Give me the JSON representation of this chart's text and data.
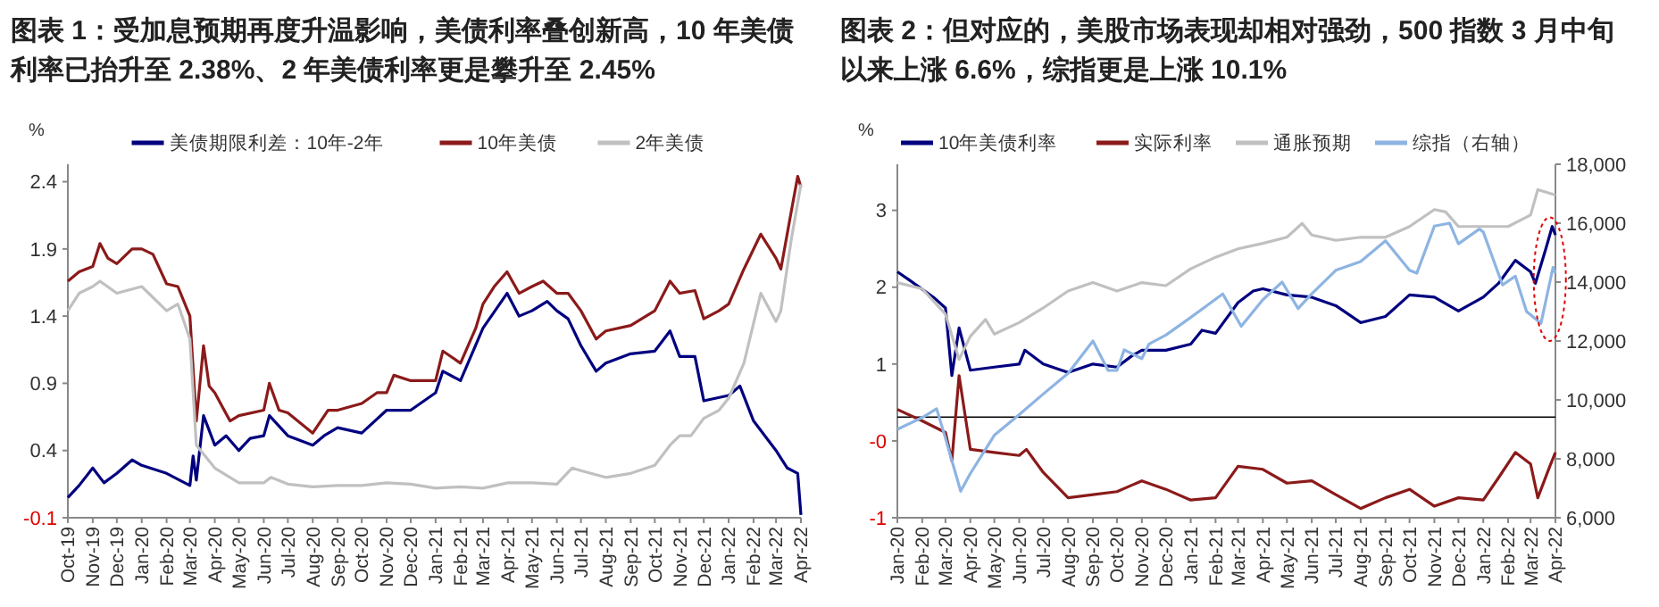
{
  "chart_data": [
    {
      "type": "line",
      "title": "图表 1：受加息预期再度升温影响，美债利率叠创新高，10 年美债利率已抬升至 2.38%、2 年美债利率更是攀升至 2.45%",
      "ylabel": "%",
      "legend": "top",
      "grid": false,
      "line_style": "solid",
      "marker": "none",
      "xlim": [
        "2019-10-01",
        "2022-04-01"
      ],
      "ylim": [
        -0.1,
        2.53
      ],
      "yticks": [
        -0.1,
        0.4,
        0.9,
        1.4,
        1.9,
        2.4
      ],
      "xticks": [
        {
          "value": "2019-10-01",
          "label": "Oct-19"
        },
        {
          "value": "2019-11-01",
          "label": "Nov-19"
        },
        {
          "value": "2019-12-01",
          "label": "Dec-19"
        },
        {
          "value": "2020-01-01",
          "label": "Jan-20"
        },
        {
          "value": "2020-02-01",
          "label": "Feb-20"
        },
        {
          "value": "2020-03-01",
          "label": "Mar-20"
        },
        {
          "value": "2020-04-01",
          "label": "Apr-20"
        },
        {
          "value": "2020-05-01",
          "label": "May-20"
        },
        {
          "value": "2020-06-01",
          "label": "Jun-20"
        },
        {
          "value": "2020-07-01",
          "label": "Jul-20"
        },
        {
          "value": "2020-08-01",
          "label": "Aug-20"
        },
        {
          "value": "2020-09-01",
          "label": "Sep-20"
        },
        {
          "value": "2020-10-01",
          "label": "Oct-20"
        },
        {
          "value": "2020-11-01",
          "label": "Nov-20"
        },
        {
          "value": "2020-12-01",
          "label": "Dec-20"
        },
        {
          "value": "2021-01-01",
          "label": "Jan-21"
        },
        {
          "value": "2021-02-01",
          "label": "Feb-21"
        },
        {
          "value": "2021-03-01",
          "label": "Mar-21"
        },
        {
          "value": "2021-04-01",
          "label": "Apr-21"
        },
        {
          "value": "2021-05-01",
          "label": "May-21"
        },
        {
          "value": "2021-06-01",
          "label": "Jun-21"
        },
        {
          "value": "2021-07-01",
          "label": "Jul-21"
        },
        {
          "value": "2021-08-01",
          "label": "Aug-21"
        },
        {
          "value": "2021-09-01",
          "label": "Sep-21"
        },
        {
          "value": "2021-10-01",
          "label": "Oct-21"
        },
        {
          "value": "2021-11-01",
          "label": "Nov-21"
        },
        {
          "value": "2021-12-01",
          "label": "Dec-21"
        },
        {
          "value": "2022-01-01",
          "label": "Jan-22"
        },
        {
          "value": "2022-02-01",
          "label": "Feb-22"
        },
        {
          "value": "2022-03-01",
          "label": "Mar-22"
        },
        {
          "value": "2022-04-01",
          "label": "Apr-22"
        }
      ],
      "series": [
        {
          "name": "美债期限利差：10年-2年",
          "color": "#00007f",
          "x": [
            "2019-10-01",
            "2019-10-15",
            "2019-11-01",
            "2019-11-15",
            "2019-12-01",
            "2019-12-20",
            "2020-01-01",
            "2020-02-01",
            "2020-03-01",
            "2020-03-05",
            "2020-03-09",
            "2020-03-18",
            "2020-04-01",
            "2020-04-15",
            "2020-05-01",
            "2020-05-15",
            "2020-06-01",
            "2020-06-08",
            "2020-07-01",
            "2020-08-01",
            "2020-08-15",
            "2020-09-01",
            "2020-10-01",
            "2020-11-01",
            "2020-12-01",
            "2021-01-01",
            "2021-01-10",
            "2021-02-01",
            "2021-03-01",
            "2021-03-31",
            "2021-04-15",
            "2021-05-01",
            "2021-05-20",
            "2021-06-01",
            "2021-06-15",
            "2021-07-01",
            "2021-07-20",
            "2021-08-01",
            "2021-09-01",
            "2021-10-01",
            "2021-10-20",
            "2021-11-01",
            "2021-11-20",
            "2021-12-01",
            "2022-01-01",
            "2022-01-15",
            "2022-02-01",
            "2022-03-01",
            "2022-03-15",
            "2022-03-28",
            "2022-04-01"
          ],
          "values": [
            0.05,
            0.14,
            0.27,
            0.16,
            0.23,
            0.33,
            0.29,
            0.23,
            0.14,
            0.36,
            0.18,
            0.66,
            0.44,
            0.51,
            0.4,
            0.49,
            0.51,
            0.66,
            0.51,
            0.44,
            0.51,
            0.57,
            0.53,
            0.7,
            0.7,
            0.83,
            0.99,
            0.92,
            1.31,
            1.57,
            1.4,
            1.44,
            1.51,
            1.44,
            1.38,
            1.18,
            0.99,
            1.05,
            1.12,
            1.14,
            1.29,
            1.1,
            1.1,
            0.77,
            0.81,
            0.88,
            0.62,
            0.4,
            0.27,
            0.23,
            -0.08
          ]
        },
        {
          "name": "10年美债",
          "color": "#8b1a1a",
          "x": [
            "2019-10-01",
            "2019-10-15",
            "2019-11-01",
            "2019-11-10",
            "2019-11-20",
            "2019-12-01",
            "2019-12-20",
            "2020-01-01",
            "2020-01-15",
            "2020-02-01",
            "2020-02-15",
            "2020-03-01",
            "2020-03-09",
            "2020-03-18",
            "2020-03-25",
            "2020-04-01",
            "2020-04-20",
            "2020-05-01",
            "2020-06-01",
            "2020-06-08",
            "2020-06-20",
            "2020-07-01",
            "2020-08-01",
            "2020-08-20",
            "2020-09-01",
            "2020-10-01",
            "2020-10-20",
            "2020-11-01",
            "2020-11-10",
            "2020-12-01",
            "2021-01-01",
            "2021-01-10",
            "2021-02-01",
            "2021-02-20",
            "2021-03-01",
            "2021-03-15",
            "2021-03-31",
            "2021-04-15",
            "2021-05-01",
            "2021-05-15",
            "2021-06-01",
            "2021-06-15",
            "2021-07-01",
            "2021-07-20",
            "2021-08-01",
            "2021-09-01",
            "2021-10-01",
            "2021-10-20",
            "2021-11-01",
            "2021-11-20",
            "2021-12-01",
            "2021-12-20",
            "2022-01-01",
            "2022-01-20",
            "2022-02-10",
            "2022-03-01",
            "2022-03-07",
            "2022-03-20",
            "2022-03-28",
            "2022-04-01"
          ],
          "values": [
            1.66,
            1.73,
            1.77,
            1.94,
            1.83,
            1.79,
            1.9,
            1.9,
            1.86,
            1.64,
            1.62,
            1.4,
            0.62,
            1.18,
            0.88,
            0.83,
            0.62,
            0.66,
            0.7,
            0.9,
            0.7,
            0.68,
            0.53,
            0.7,
            0.7,
            0.75,
            0.83,
            0.83,
            0.96,
            0.92,
            0.92,
            1.14,
            1.05,
            1.31,
            1.49,
            1.62,
            1.73,
            1.57,
            1.62,
            1.66,
            1.57,
            1.57,
            1.44,
            1.23,
            1.29,
            1.33,
            1.44,
            1.66,
            1.57,
            1.59,
            1.38,
            1.44,
            1.49,
            1.75,
            2.01,
            1.83,
            1.75,
            2.18,
            2.44,
            2.36
          ]
        },
        {
          "name": "2年美债",
          "color": "#c0c0c0",
          "x": [
            "2019-10-01",
            "2019-10-15",
            "2019-11-01",
            "2019-11-10",
            "2019-12-01",
            "2020-01-01",
            "2020-02-01",
            "2020-02-15",
            "2020-03-01",
            "2020-03-09",
            "2020-04-01",
            "2020-05-01",
            "2020-06-01",
            "2020-06-10",
            "2020-07-01",
            "2020-08-01",
            "2020-09-01",
            "2020-10-01",
            "2020-11-01",
            "2020-12-01",
            "2021-01-01",
            "2021-02-01",
            "2021-03-01",
            "2021-04-01",
            "2021-05-01",
            "2021-06-01",
            "2021-06-20",
            "2021-07-01",
            "2021-08-01",
            "2021-09-01",
            "2021-10-01",
            "2021-10-20",
            "2021-11-01",
            "2021-11-15",
            "2021-12-01",
            "2021-12-20",
            "2022-01-01",
            "2022-01-20",
            "2022-02-10",
            "2022-03-01",
            "2022-03-07",
            "2022-03-20",
            "2022-04-01"
          ],
          "values": [
            1.44,
            1.57,
            1.62,
            1.66,
            1.57,
            1.62,
            1.44,
            1.49,
            1.23,
            0.44,
            0.27,
            0.16,
            0.16,
            0.2,
            0.15,
            0.13,
            0.14,
            0.14,
            0.16,
            0.15,
            0.12,
            0.13,
            0.12,
            0.16,
            0.16,
            0.15,
            0.27,
            0.25,
            0.2,
            0.23,
            0.29,
            0.44,
            0.51,
            0.51,
            0.64,
            0.7,
            0.79,
            1.05,
            1.57,
            1.36,
            1.44,
            1.97,
            2.38
          ]
        }
      ]
    },
    {
      "type": "line",
      "title": "图表 2：但对应的，美股市场表现却相对强劲，500 指数 3 月中旬以来上涨 6.6%，综指更是上涨 10.1%",
      "ylabel": "%",
      "legend": "top",
      "grid": false,
      "line_style": "solid",
      "marker": "none",
      "xlim": [
        "2020-01-01",
        "2022-04-01"
      ],
      "ylim": [
        -1,
        3.6
      ],
      "yticks": [
        -1,
        {
          "value": 0,
          "label": "-0"
        },
        1,
        2,
        3
      ],
      "y2lim": [
        6000,
        18000
      ],
      "y2ticks": [
        {
          "value": 6000,
          "label": "6,000"
        },
        {
          "value": 8000,
          "label": "8,000"
        },
        {
          "value": 10000,
          "label": "10,000"
        },
        {
          "value": 12000,
          "label": "12,000"
        },
        {
          "value": 14000,
          "label": "14,000"
        },
        {
          "value": 16000,
          "label": "16,000"
        },
        {
          "value": 18000,
          "label": "18,000"
        }
      ],
      "ref_lines": [
        {
          "axis": "y",
          "value": 0.31,
          "color": "#000000"
        }
      ],
      "xticks": [
        {
          "value": "2020-01-01",
          "label": "Jan-20"
        },
        {
          "value": "2020-02-01",
          "label": "Feb-20"
        },
        {
          "value": "2020-03-01",
          "label": "Mar-20"
        },
        {
          "value": "2020-04-01",
          "label": "Apr-20"
        },
        {
          "value": "2020-05-01",
          "label": "May-20"
        },
        {
          "value": "2020-06-01",
          "label": "Jun-20"
        },
        {
          "value": "2020-07-01",
          "label": "Jul-20"
        },
        {
          "value": "2020-08-01",
          "label": "Aug-20"
        },
        {
          "value": "2020-09-01",
          "label": "Sep-20"
        },
        {
          "value": "2020-10-01",
          "label": "Oct-20"
        },
        {
          "value": "2020-11-01",
          "label": "Nov-20"
        },
        {
          "value": "2020-12-01",
          "label": "Dec-20"
        },
        {
          "value": "2021-01-01",
          "label": "Jan-21"
        },
        {
          "value": "2021-02-01",
          "label": "Feb-21"
        },
        {
          "value": "2021-03-01",
          "label": "Mar-21"
        },
        {
          "value": "2021-04-01",
          "label": "Apr-21"
        },
        {
          "value": "2021-05-01",
          "label": "May-21"
        },
        {
          "value": "2021-06-01",
          "label": "Jun-21"
        },
        {
          "value": "2021-07-01",
          "label": "Jul-21"
        },
        {
          "value": "2021-08-01",
          "label": "Aug-21"
        },
        {
          "value": "2021-09-01",
          "label": "Sep-21"
        },
        {
          "value": "2021-10-01",
          "label": "Oct-21"
        },
        {
          "value": "2021-11-01",
          "label": "Nov-21"
        },
        {
          "value": "2021-12-01",
          "label": "Dec-21"
        },
        {
          "value": "2022-01-01",
          "label": "Jan-22"
        },
        {
          "value": "2022-02-01",
          "label": "Feb-22"
        },
        {
          "value": "2022-03-01",
          "label": "Mar-22"
        },
        {
          "value": "2022-04-01",
          "label": "Apr-22"
        }
      ],
      "series": [
        {
          "name": "10年美债利率",
          "color": "#00007f",
          "x": [
            "2020-01-01",
            "2020-01-15",
            "2020-02-15",
            "2020-03-01",
            "2020-03-09",
            "2020-03-18",
            "2020-04-01",
            "2020-05-01",
            "2020-06-01",
            "2020-06-08",
            "2020-07-01",
            "2020-08-01",
            "2020-09-01",
            "2020-10-01",
            "2020-10-20",
            "2020-11-01",
            "2020-12-01",
            "2021-01-01",
            "2021-01-15",
            "2021-02-01",
            "2021-03-01",
            "2021-03-20",
            "2021-04-01",
            "2021-05-01",
            "2021-06-01",
            "2021-07-01",
            "2021-08-01",
            "2021-09-01",
            "2021-10-01",
            "2021-11-01",
            "2021-12-01",
            "2022-01-01",
            "2022-01-20",
            "2022-02-10",
            "2022-03-01",
            "2022-03-07",
            "2022-03-20",
            "2022-03-28",
            "2022-04-01"
          ],
          "values": [
            2.2,
            2.1,
            1.87,
            1.73,
            0.85,
            1.47,
            0.92,
            0.96,
            1.0,
            1.18,
            1.0,
            0.89,
            1.0,
            0.96,
            1.11,
            1.18,
            1.18,
            1.26,
            1.44,
            1.4,
            1.8,
            1.95,
            1.98,
            1.9,
            1.87,
            1.76,
            1.54,
            1.62,
            1.9,
            1.87,
            1.69,
            1.87,
            2.05,
            2.35,
            2.2,
            2.05,
            2.5,
            2.79,
            2.68
          ]
        },
        {
          "name": "实际利率",
          "color": "#8b1a1a",
          "x": [
            "2020-01-01",
            "2020-02-01",
            "2020-03-01",
            "2020-03-09",
            "2020-03-18",
            "2020-04-01",
            "2020-05-01",
            "2020-06-01",
            "2020-06-10",
            "2020-07-01",
            "2020-08-01",
            "2020-09-01",
            "2020-10-01",
            "2020-11-01",
            "2020-12-01",
            "2021-01-01",
            "2021-02-01",
            "2021-03-01",
            "2021-04-01",
            "2021-05-01",
            "2021-06-01",
            "2021-07-01",
            "2021-08-01",
            "2021-09-01",
            "2021-10-01",
            "2021-11-01",
            "2021-12-01",
            "2022-01-01",
            "2022-01-20",
            "2022-02-10",
            "2022-03-01",
            "2022-03-10",
            "2022-03-25",
            "2022-04-01"
          ],
          "values": [
            0.41,
            0.26,
            0.11,
            -0.26,
            0.85,
            -0.11,
            -0.15,
            -0.19,
            -0.11,
            -0.41,
            -0.74,
            -0.7,
            -0.66,
            -0.52,
            -0.63,
            -0.77,
            -0.74,
            -0.33,
            -0.37,
            -0.55,
            -0.52,
            -0.7,
            -0.88,
            -0.74,
            -0.63,
            -0.85,
            -0.74,
            -0.77,
            -0.48,
            -0.15,
            -0.3,
            -0.74,
            -0.33,
            -0.15
          ]
        },
        {
          "name": "通胀预期",
          "color": "#c0c0c0",
          "x": [
            "2020-01-01",
            "2020-02-01",
            "2020-03-01",
            "2020-03-18",
            "2020-04-01",
            "2020-04-20",
            "2020-05-01",
            "2020-06-01",
            "2020-07-01",
            "2020-08-01",
            "2020-09-01",
            "2020-10-01",
            "2020-11-01",
            "2020-12-01",
            "2021-01-01",
            "2021-02-01",
            "2021-03-01",
            "2021-04-01",
            "2021-05-01",
            "2021-05-20",
            "2021-06-01",
            "2021-07-01",
            "2021-08-01",
            "2021-09-01",
            "2021-10-01",
            "2021-11-01",
            "2021-11-15",
            "2021-12-01",
            "2022-01-01",
            "2022-02-01",
            "2022-03-01",
            "2022-03-10",
            "2022-04-01"
          ],
          "values": [
            2.06,
            1.98,
            1.65,
            1.06,
            1.36,
            1.58,
            1.39,
            1.54,
            1.73,
            1.95,
            2.06,
            1.95,
            2.06,
            2.02,
            2.24,
            2.39,
            2.5,
            2.57,
            2.65,
            2.83,
            2.68,
            2.61,
            2.65,
            2.65,
            2.79,
            3.01,
            2.98,
            2.79,
            2.79,
            2.79,
            2.94,
            3.27,
            3.2
          ]
        },
        {
          "name": "综指（右轴）",
          "color": "#8db4e2",
          "axis": "y2",
          "x": [
            "2020-01-01",
            "2020-02-01",
            "2020-02-19",
            "2020-03-01",
            "2020-03-20",
            "2020-04-01",
            "2020-05-01",
            "2020-06-01",
            "2020-07-01",
            "2020-08-01",
            "2020-09-01",
            "2020-09-20",
            "2020-10-01",
            "2020-10-10",
            "2020-11-01",
            "2020-11-10",
            "2020-12-01",
            "2021-01-01",
            "2021-02-10",
            "2021-03-05",
            "2021-04-01",
            "2021-04-25",
            "2021-05-15",
            "2021-06-01",
            "2021-07-01",
            "2021-08-01",
            "2021-09-01",
            "2021-10-01",
            "2021-10-10",
            "2021-11-01",
            "2021-11-20",
            "2021-12-01",
            "2021-12-27",
            "2022-01-01",
            "2022-01-25",
            "2022-02-10",
            "2022-02-24",
            "2022-03-14",
            "2022-03-29",
            "2022-04-01"
          ],
          "values": [
            9000,
            9400,
            9700,
            8700,
            6900,
            7500,
            8800,
            9500,
            10200,
            10900,
            12000,
            11000,
            11000,
            11700,
            11400,
            11900,
            12200,
            12800,
            13600,
            12500,
            13400,
            14000,
            13100,
            13600,
            14400,
            14700,
            15400,
            14400,
            14300,
            15900,
            16000,
            15300,
            15800,
            15700,
            13900,
            14200,
            13000,
            12600,
            14500,
            14300
          ]
        }
      ]
    }
  ]
}
